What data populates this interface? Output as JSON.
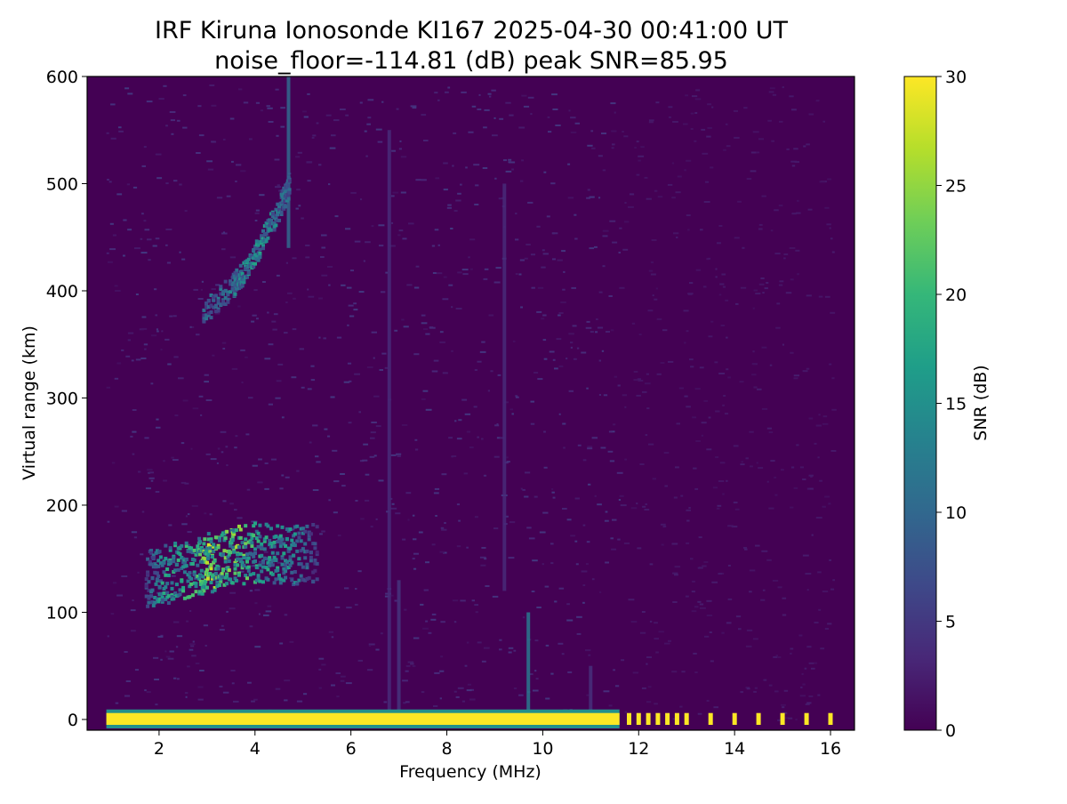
{
  "chart_data": {
    "type": "heatmap",
    "title": "IRF Kiruna Ionosonde KI167 2025-04-30 00:41:00  UT",
    "subtitle": "noise_floor=-114.81 (dB) peak SNR=85.95",
    "xlabel": "Frequency (MHz)",
    "ylabel": "Virtual range (km)",
    "colorbar_label": "SNR (dB)",
    "colormap": "viridis",
    "xlim": [
      0.5,
      16.5
    ],
    "ylim": [
      -10,
      600
    ],
    "clim": [
      0,
      30
    ],
    "x_ticks": [
      2,
      4,
      6,
      8,
      10,
      12,
      14,
      16
    ],
    "y_ticks": [
      0,
      100,
      200,
      300,
      400,
      500,
      600
    ],
    "colorbar_ticks": [
      0,
      5,
      10,
      15,
      20,
      25,
      30
    ],
    "sweep_frequency_range_mhz": [
      0.9,
      16.1
    ],
    "background_snr": 1.0,
    "ground_band": {
      "range_km": [
        -5,
        6
      ],
      "x_range": [
        0.9,
        11.6
      ],
      "snr": 30
    },
    "ground_columns": [
      {
        "x": 11.8,
        "snr": 30
      },
      {
        "x": 12.0,
        "snr": 30
      },
      {
        "x": 12.2,
        "snr": 30
      },
      {
        "x": 12.4,
        "snr": 30
      },
      {
        "x": 12.6,
        "snr": 30
      },
      {
        "x": 12.8,
        "snr": 30
      },
      {
        "x": 13.0,
        "snr": 30
      },
      {
        "x": 13.5,
        "snr": 30
      },
      {
        "x": 14.0,
        "snr": 30
      },
      {
        "x": 14.5,
        "snr": 30
      },
      {
        "x": 15.0,
        "snr": 30
      },
      {
        "x": 15.5,
        "snr": 30
      },
      {
        "x": 16.0,
        "snr": 30
      }
    ],
    "e_layer_echo": {
      "x": [
        1.7,
        2.0,
        2.4,
        2.8,
        3.0,
        3.3,
        3.6,
        4.0,
        4.4,
        4.8,
        5.3
      ],
      "range_km": [
        106,
        108,
        112,
        116,
        120,
        123,
        127,
        130,
        128,
        127,
        130
      ],
      "snr": [
        8,
        18,
        20,
        22,
        28,
        24,
        26,
        20,
        18,
        16,
        6
      ]
    },
    "f_layer_echo": {
      "x": [
        2.9,
        3.5,
        3.7,
        4.1,
        4.5,
        4.7
      ],
      "range_km": [
        370,
        395,
        405,
        435,
        470,
        490
      ],
      "snr": [
        11,
        14,
        16,
        18,
        14,
        12
      ]
    },
    "vertical_streaks": [
      {
        "x": 6.8,
        "range_km": [
          0,
          550
        ],
        "snr": 3.5
      },
      {
        "x": 7.0,
        "range_km": [
          0,
          130
        ],
        "snr": 4.5
      },
      {
        "x": 9.7,
        "range_km": [
          0,
          100
        ],
        "snr": 12
      },
      {
        "x": 9.2,
        "range_km": [
          120,
          500
        ],
        "snr": 3.5
      },
      {
        "x": 11.0,
        "range_km": [
          0,
          50
        ],
        "snr": 4
      },
      {
        "x": 4.7,
        "range_km": [
          440,
          600
        ],
        "snr": 10
      }
    ]
  }
}
